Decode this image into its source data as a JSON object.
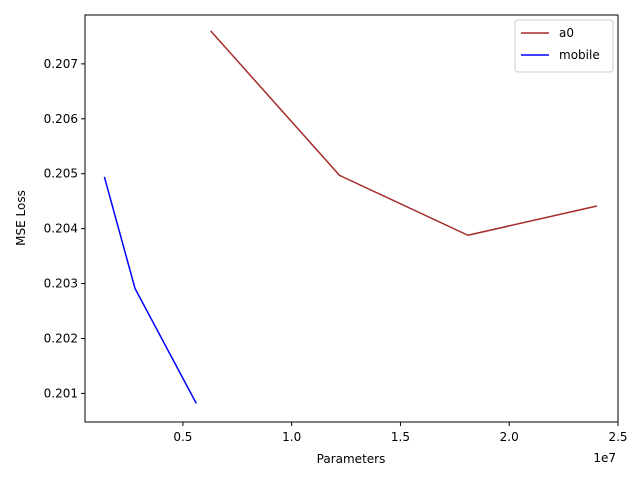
{
  "chart_data": {
    "type": "line",
    "title": "",
    "xlabel": "Parameters",
    "ylabel": "MSE Loss",
    "x_offset_label": "1e7",
    "xlim": [
      500000,
      25000000
    ],
    "ylim": [
      0.20048,
      0.20789
    ],
    "x_ticks": [
      {
        "value": 5000000,
        "label": "0.5"
      },
      {
        "value": 10000000,
        "label": "1.0"
      },
      {
        "value": 15000000,
        "label": "1.5"
      },
      {
        "value": 20000000,
        "label": "2.0"
      },
      {
        "value": 25000000,
        "label": "2.5"
      }
    ],
    "y_ticks": [
      {
        "value": 0.201,
        "label": "0.201"
      },
      {
        "value": 0.202,
        "label": "0.202"
      },
      {
        "value": 0.203,
        "label": "0.203"
      },
      {
        "value": 0.204,
        "label": "0.204"
      },
      {
        "value": 0.205,
        "label": "0.205"
      },
      {
        "value": 0.206,
        "label": "0.206"
      },
      {
        "value": 0.207,
        "label": "0.207"
      }
    ],
    "grid": false,
    "legend_position": "top-right",
    "series": [
      {
        "name": "a0",
        "color": "#a52a2a",
        "x": [
          6300000,
          12200000,
          18100000,
          24000000
        ],
        "y": [
          0.20759,
          0.20497,
          0.20388,
          0.20441
        ]
      },
      {
        "name": "mobile",
        "color": "#0000ff",
        "x": [
          1400000,
          2800000,
          5600000
        ],
        "y": [
          0.20493,
          0.20291,
          0.20083
        ]
      }
    ]
  }
}
